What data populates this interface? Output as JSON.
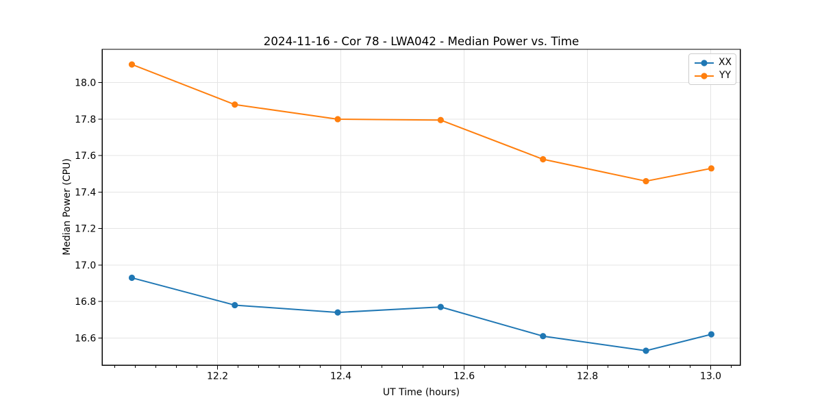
{
  "figure": {
    "background": "#ffffff",
    "text_color": "#000000",
    "spine_color": "#000000"
  },
  "chart_data": {
    "type": "line",
    "title": "2024-11-16 - Cor 78 - LWA042 - Median Power vs. Time",
    "xlabel": "UT Time (hours)",
    "ylabel": "Median Power (CPU)",
    "x": [
      12.061,
      12.228,
      12.395,
      12.562,
      12.728,
      12.895,
      13.001
    ],
    "series": [
      {
        "name": "XX",
        "color": "#1f77b4",
        "values": [
          16.93,
          16.78,
          16.74,
          16.77,
          16.61,
          16.53,
          16.62
        ]
      },
      {
        "name": "YY",
        "color": "#ff7f0e",
        "values": [
          18.1,
          17.88,
          17.8,
          17.795,
          17.58,
          17.46,
          17.53
        ]
      }
    ],
    "xlim": [
      12.013,
      13.048
    ],
    "ylim": [
      16.45,
      18.183
    ],
    "x_ticks": [
      12.2,
      12.4,
      12.6,
      12.8,
      13.0
    ],
    "x_tick_labels": [
      "12.2",
      "12.4",
      "12.6",
      "12.8",
      "13.0"
    ],
    "x_minor_step": 0.0333333,
    "y_ticks": [
      16.6,
      16.8,
      17.0,
      17.2,
      17.4,
      17.6,
      17.8,
      18.0
    ],
    "y_tick_labels": [
      "16.6",
      "16.8",
      "17.0",
      "17.2",
      "17.4",
      "17.6",
      "17.8",
      "18.0"
    ],
    "grid": true,
    "grid_color": "#e4e4e4",
    "legend_position": "upper right",
    "line_width": 2,
    "marker": "circle",
    "marker_radius": 4.6
  }
}
